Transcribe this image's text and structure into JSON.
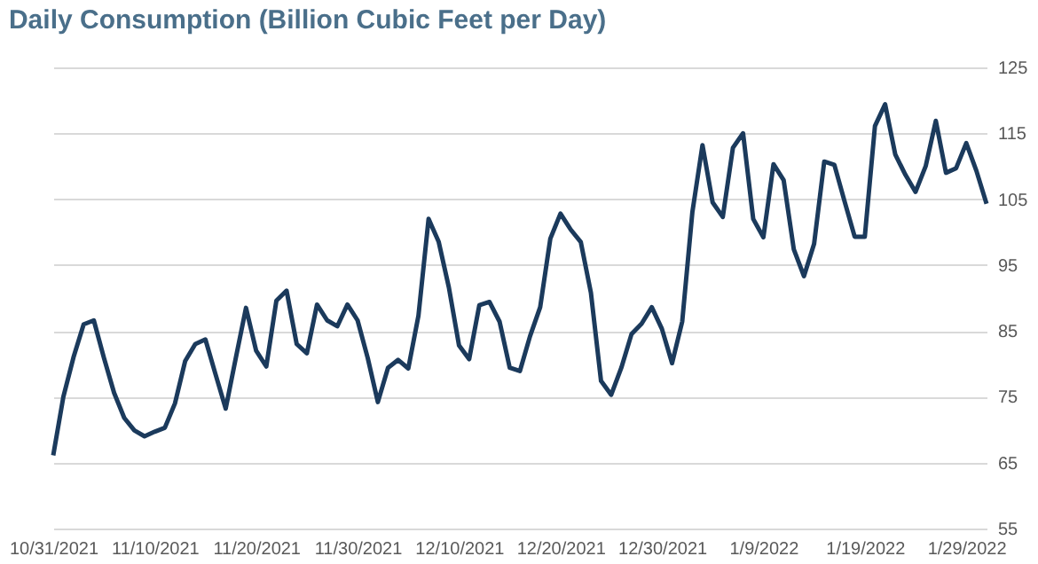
{
  "chart_data": {
    "type": "line",
    "title": "Daily Consumption (Billion Cubic Feet per Day)",
    "x": [
      "2021-10-31",
      "2021-11-01",
      "2021-11-02",
      "2021-11-03",
      "2021-11-04",
      "2021-11-05",
      "2021-11-06",
      "2021-11-07",
      "2021-11-08",
      "2021-11-09",
      "2021-11-10",
      "2021-11-11",
      "2021-11-12",
      "2021-11-13",
      "2021-11-14",
      "2021-11-15",
      "2021-11-16",
      "2021-11-17",
      "2021-11-18",
      "2021-11-19",
      "2021-11-20",
      "2021-11-21",
      "2021-11-22",
      "2021-11-23",
      "2021-11-24",
      "2021-11-25",
      "2021-11-26",
      "2021-11-27",
      "2021-11-28",
      "2021-11-29",
      "2021-11-30",
      "2021-12-01",
      "2021-12-02",
      "2021-12-03",
      "2021-12-04",
      "2021-12-05",
      "2021-12-06",
      "2021-12-07",
      "2021-12-08",
      "2021-12-09",
      "2021-12-10",
      "2021-12-11",
      "2021-12-12",
      "2021-12-13",
      "2021-12-14",
      "2021-12-15",
      "2021-12-16",
      "2021-12-17",
      "2021-12-18",
      "2021-12-19",
      "2021-12-20",
      "2021-12-21",
      "2021-12-22",
      "2021-12-23",
      "2021-12-24",
      "2021-12-25",
      "2021-12-26",
      "2021-12-27",
      "2021-12-28",
      "2021-12-29",
      "2021-12-30",
      "2021-12-31",
      "2022-01-01",
      "2022-01-02",
      "2022-01-03",
      "2022-01-04",
      "2022-01-05",
      "2022-01-06",
      "2022-01-07",
      "2022-01-08",
      "2022-01-09",
      "2022-01-10",
      "2022-01-11",
      "2022-01-12",
      "2022-01-13",
      "2022-01-14",
      "2022-01-15",
      "2022-01-16",
      "2022-01-17",
      "2022-01-18",
      "2022-01-19",
      "2022-01-20",
      "2022-01-21",
      "2022-01-22",
      "2022-01-23",
      "2022-01-24",
      "2022-01-25",
      "2022-01-26",
      "2022-01-27",
      "2022-01-28",
      "2022-01-29",
      "2022-01-30",
      "2022-01-31"
    ],
    "series": [
      {
        "color": "#1b3a5c",
        "values": [
          66.1,
          75,
          81,
          86,
          86.6,
          80.9,
          75.6,
          71.8,
          69.9,
          69,
          69.7,
          70.3,
          74,
          80.4,
          83,
          83.7,
          78.4,
          73.2,
          80.9,
          88.5,
          82,
          79.6,
          89.6,
          91.1,
          83,
          81.6,
          89,
          86.6,
          85.7,
          89,
          86.6,
          80.9,
          74.2,
          79.4,
          80.6,
          79.3,
          87.3,
          102,
          98.5,
          91.6,
          82.8,
          80.7,
          88.9,
          89.4,
          86.4,
          79.4,
          78.9,
          84.2,
          88.6,
          99,
          102.8,
          100.4,
          98.5,
          90.8,
          77.4,
          75.3,
          79.4,
          84.5,
          86.1,
          88.6,
          85.3,
          80.1,
          86.4,
          103,
          113.2,
          104.5,
          102.3,
          112.8,
          115,
          102,
          99.2,
          110.3,
          107.9,
          97.4,
          93.3,
          98.2,
          110.7,
          110.2,
          104.7,
          99.3,
          99.3,
          116.1,
          119.4,
          111.8,
          108.7,
          106.1,
          110,
          116.9,
          109,
          109.7,
          113.5,
          109.3,
          104.3
        ]
      }
    ],
    "xlim": [
      "2021-10-31",
      "2022-01-31"
    ],
    "xticks": [
      {
        "value": "2021-10-31",
        "label": "10/31/2021"
      },
      {
        "value": "2021-11-10",
        "label": "11/10/2021"
      },
      {
        "value": "2021-11-20",
        "label": "11/20/2021"
      },
      {
        "value": "2021-11-30",
        "label": "11/30/2021"
      },
      {
        "value": "2021-12-10",
        "label": "12/10/2021"
      },
      {
        "value": "2021-12-20",
        "label": "12/20/2021"
      },
      {
        "value": "2021-12-30",
        "label": "12/30/2021"
      },
      {
        "value": "2022-01-09",
        "label": "1/9/2022"
      },
      {
        "value": "2022-01-19",
        "label": "1/19/2022"
      },
      {
        "value": "2022-01-29",
        "label": "1/29/2022"
      }
    ],
    "ylim": [
      55,
      125
    ],
    "yticks": [
      55,
      65,
      75,
      85,
      95,
      105,
      115,
      125
    ],
    "grid": "y",
    "marker": "none",
    "line_style": "solid"
  }
}
